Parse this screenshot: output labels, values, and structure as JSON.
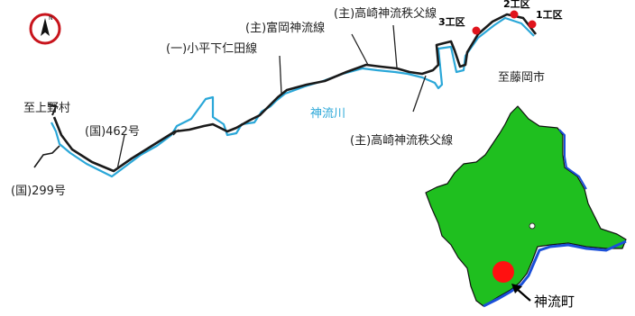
{
  "labels": {
    "upper_route": "(主)高崎神流秩父線",
    "tomioka": "(主)富岡神流線",
    "kohira": "(一)小平下仁田線",
    "lower_route": "(主)高崎神流秩父線",
    "river": "神流川",
    "ueno": "至上野村",
    "r462": "(国)462号",
    "r299": "(国)299号",
    "fujioka": "至藤岡市",
    "town": "神流町"
  },
  "sections": {
    "s1": "1工区",
    "s2": "2工区",
    "s3": "3工区"
  },
  "compass": {
    "symbol": "N"
  },
  "colors": {
    "road": "#1a1a1a",
    "river": "#2aa7d8",
    "section_dot": "#e0141c",
    "region_fill": "#1fbf1f",
    "region_edge": "#1b4fd8",
    "town_marker": "#ff1010"
  }
}
